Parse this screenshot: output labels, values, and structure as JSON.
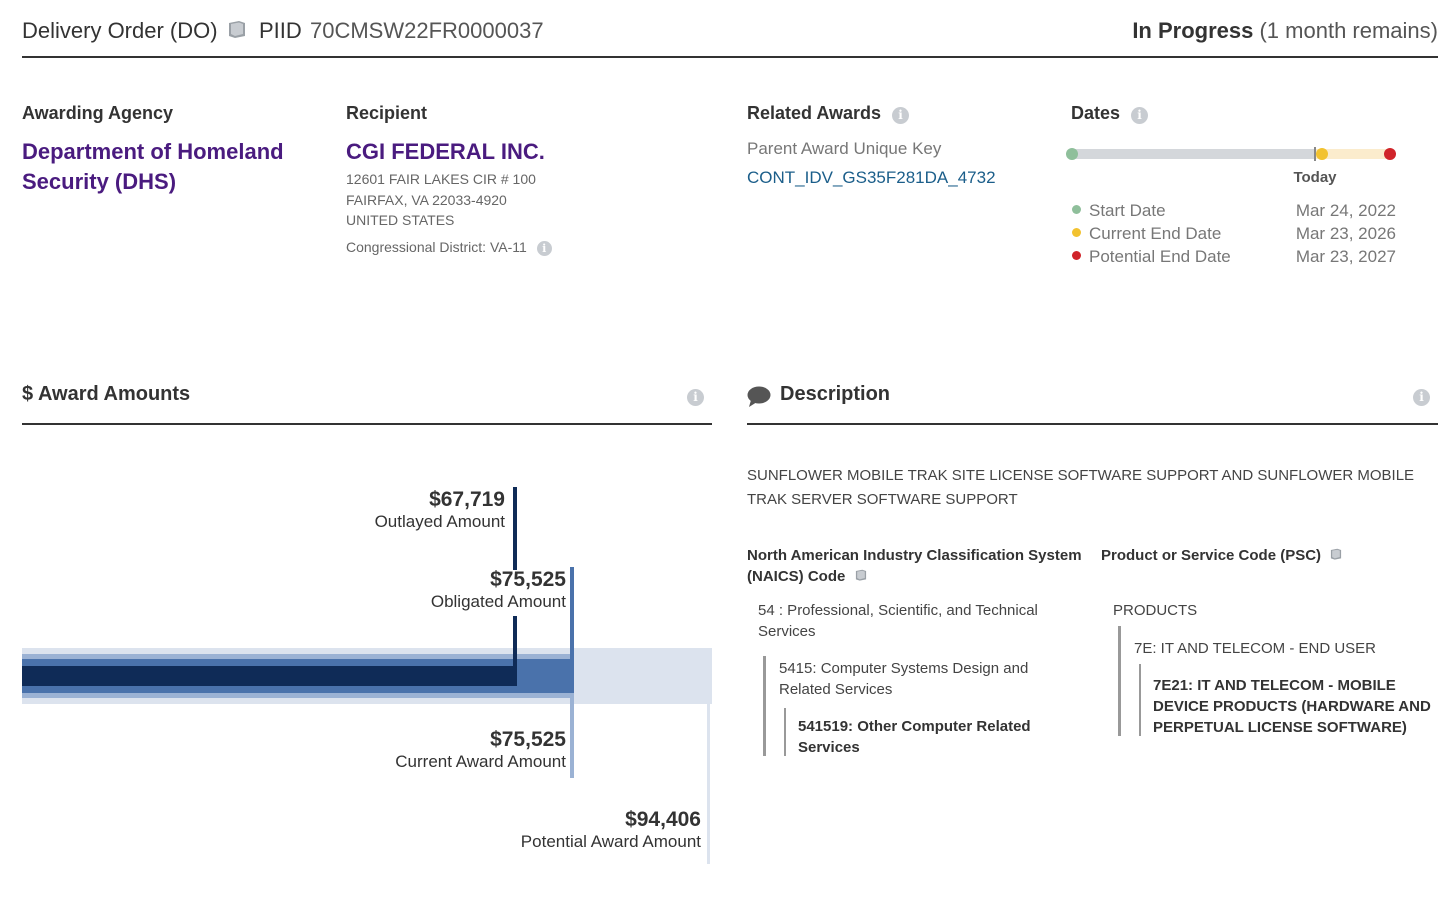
{
  "header": {
    "award_type": "Delivery Order (DO)",
    "piid_label": "PIID",
    "piid": "70CMSW22FR0000037",
    "status": "In Progress",
    "status_detail": "(1 month remains)"
  },
  "awarding_agency": {
    "label": "Awarding Agency",
    "name_line1": "Department of Homeland",
    "name_line2": "Security (DHS)"
  },
  "recipient": {
    "label": "Recipient",
    "name": "CGI FEDERAL INC.",
    "address1": "12601 FAIR LAKES CIR # 100",
    "address2": "FAIRFAX, VA 22033-4920",
    "country": "UNITED STATES",
    "district": "Congressional District: VA-11"
  },
  "related_awards": {
    "label": "Related Awards",
    "parent_key_label": "Parent Award Unique Key",
    "parent_key": "CONT_IDV_GS35F281DA_4732"
  },
  "dates": {
    "label": "Dates",
    "today_label": "Today",
    "today_fraction": 0.765,
    "current_end_fraction": 0.785,
    "items": [
      {
        "label": "Start Date",
        "value": "Mar 24, 2022",
        "color": "#8fbf9b"
      },
      {
        "label": "Current End Date",
        "value": "Mar 23, 2026",
        "color": "#f2c230"
      },
      {
        "label": "Potential End Date",
        "value": "Mar 23, 2027",
        "color": "#d0242a"
      }
    ]
  },
  "award_amounts": {
    "title": "$ Award Amounts",
    "outlayed": {
      "value": "$67,719",
      "label": "Outlayed Amount",
      "amount": 67719
    },
    "obligated": {
      "value": "$75,525",
      "label": "Obligated Amount",
      "amount": 75525
    },
    "current": {
      "value": "$75,525",
      "label": "Current Award Amount",
      "amount": 75525
    },
    "potential": {
      "value": "$94,406",
      "label": "Potential Award Amount",
      "amount": 94406
    }
  },
  "description": {
    "title": "Description",
    "text": "SUNFLOWER MOBILE TRAK SITE LICENSE SOFTWARE SUPPORT AND SUNFLOWER MOBILE TRAK SERVER SOFTWARE SUPPORT",
    "naics": {
      "heading_line1": "North American Industry Classification System",
      "heading_line2": "(NAICS)  Code",
      "l1_line1": "54 : Professional, Scientific, and Technical",
      "l1_line2": "Services",
      "l2_line1": "5415: Computer Systems Design and",
      "l2_line2": "Related Services",
      "l3_line1": "541519: Other Computer Related",
      "l3_line2": "Services"
    },
    "psc": {
      "heading": "Product or Service Code  (PSC)",
      "l1": "PRODUCTS",
      "l2": "7E: IT AND TELECOM - END USER",
      "l3_line1": "7E21: IT AND TELECOM - MOBILE",
      "l3_line2": "DEVICE PRODUCTS (HARDWARE AND",
      "l3_line3": "PERPETUAL LICENSE SOFTWARE)"
    }
  }
}
